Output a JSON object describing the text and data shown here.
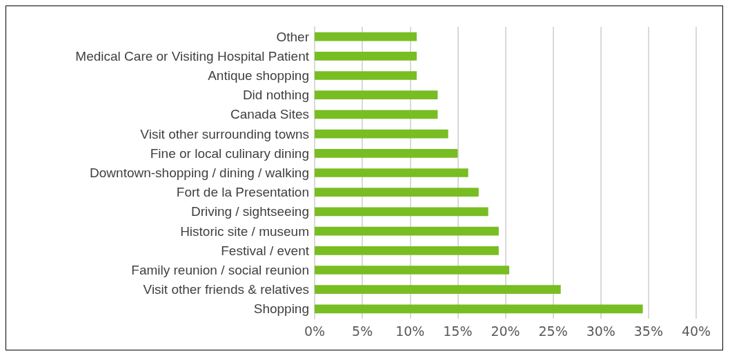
{
  "chart_data": {
    "type": "bar",
    "orientation": "horizontal",
    "categories": [
      "Other",
      "Medical Care or Visiting Hospital Patient",
      "Antique shopping",
      "Did nothing",
      "Canada Sites",
      "Visit other surrounding towns",
      "Fine or local culinary dining",
      "Downtown-shopping / dining / walking",
      "Fort de la Presentation",
      "Driving / sightseeing",
      "Historic site / museum",
      "Festival / event",
      "Family reunion / social reunion",
      "Visit other friends & relatives",
      "Shopping"
    ],
    "values": [
      10.7,
      10.7,
      10.7,
      12.9,
      12.9,
      14.0,
      15.0,
      16.1,
      17.2,
      18.2,
      19.3,
      19.3,
      20.4,
      25.8,
      34.4
    ],
    "color": "#78bd22",
    "xlim": [
      0,
      40
    ],
    "xticks": [
      {
        "value": 0,
        "label": "0%"
      },
      {
        "value": 5,
        "label": "5%"
      },
      {
        "value": 10,
        "label": "10%"
      },
      {
        "value": 15,
        "label": "15%"
      },
      {
        "value": 20,
        "label": "20%"
      },
      {
        "value": 25,
        "label": "25%"
      },
      {
        "value": 30,
        "label": "30%"
      },
      {
        "value": 35,
        "label": "35%"
      },
      {
        "value": 40,
        "label": "40%"
      }
    ],
    "grid": "x"
  }
}
